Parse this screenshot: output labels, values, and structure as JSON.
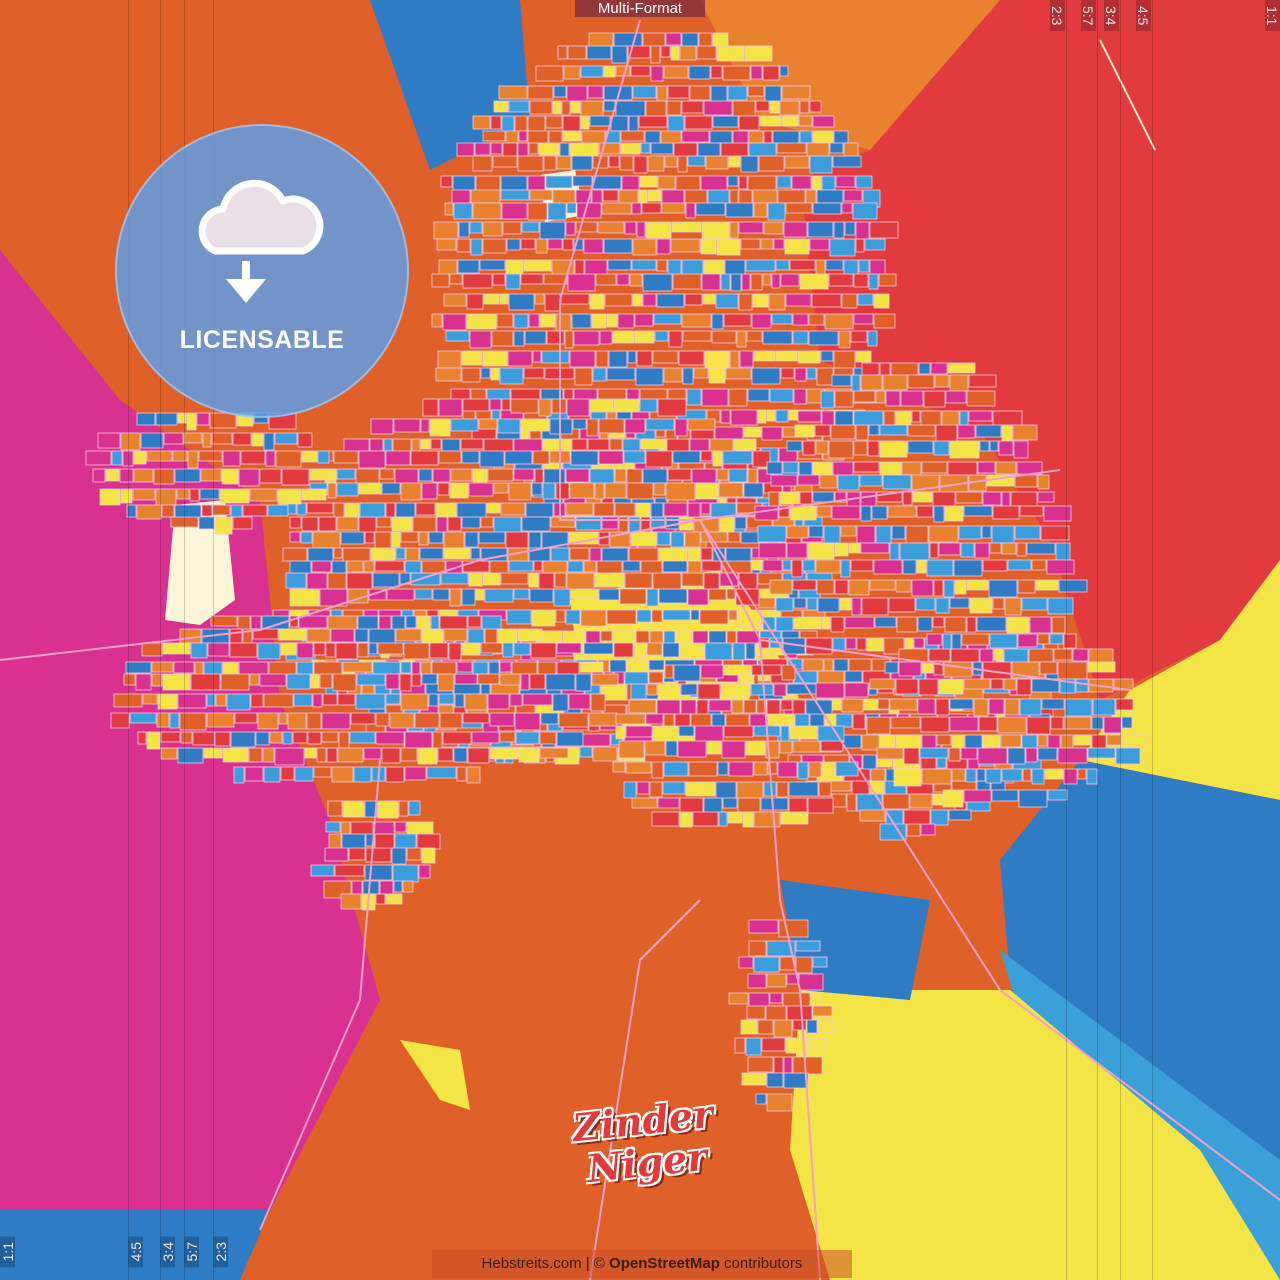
{
  "header": {
    "badge": "Multi-Format"
  },
  "ratios_top": [
    "2:3",
    "5:7",
    "3:4",
    "4:5",
    "1:1"
  ],
  "ratios_bottom": [
    "1:1",
    "4:5",
    "3:4",
    "5:7",
    "2:3"
  ],
  "licensable": {
    "label": "LICENSABLE",
    "icon": "cloud-download-icon"
  },
  "map": {
    "title_line1": "Zinder",
    "title_line2": "Niger",
    "attribution_site": "Hebstreits.com",
    "attribution_sep": " | © ",
    "attribution_osm": "OpenStreetMap",
    "attribution_tail": " contributors",
    "palette": [
      "#e0602a",
      "#d8318f",
      "#e23b3f",
      "#f5e445",
      "#3b9ddc",
      "#2f7cc4",
      "#e8822f"
    ]
  }
}
